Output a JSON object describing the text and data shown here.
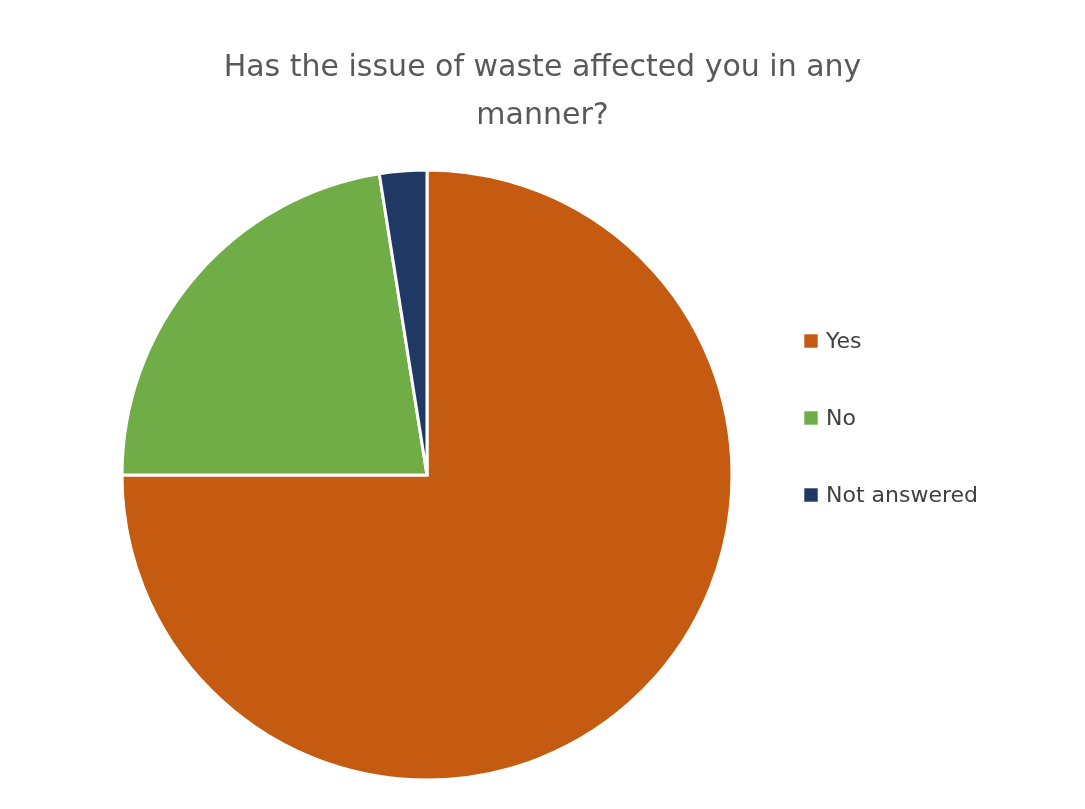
{
  "chart_data": {
    "type": "pie",
    "title": "Has the issue of waste affected you in any manner?",
    "categories": [
      "Yes",
      "No",
      "Not answered"
    ],
    "values": [
      75,
      22.5,
      2.5
    ],
    "colors": [
      "#c55a11",
      "#70ad47",
      "#203864"
    ],
    "legend": "right"
  }
}
